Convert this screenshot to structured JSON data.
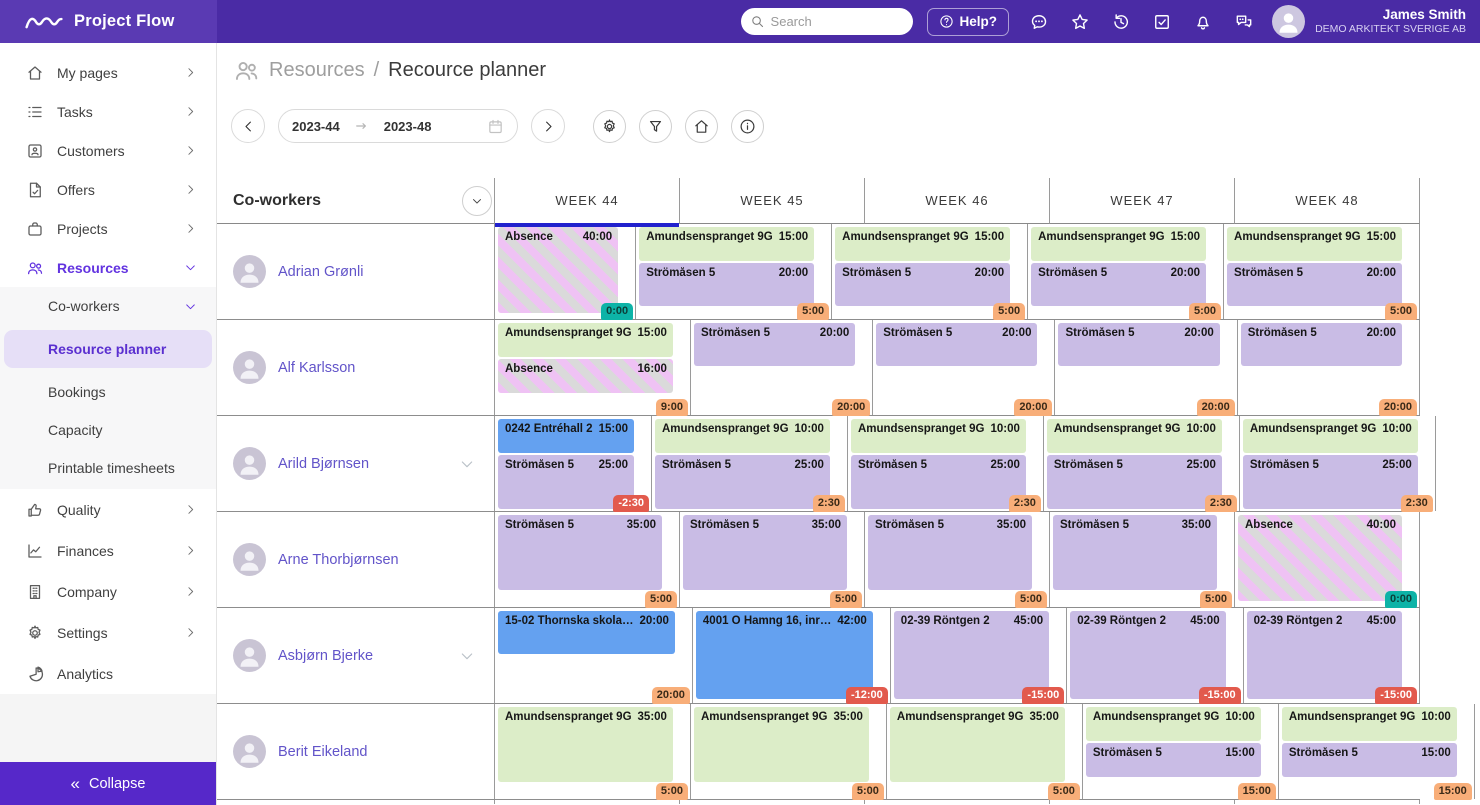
{
  "topbar": {
    "brand": "Project Flow",
    "search_placeholder": "Search",
    "help_label": "Help?",
    "icons": [
      {
        "name": "feedback-icon",
        "glyph": "feedback"
      },
      {
        "name": "favorites-star-icon",
        "glyph": "star"
      },
      {
        "name": "history-icon",
        "glyph": "history"
      },
      {
        "name": "tasks-check-icon",
        "glyph": "check-square"
      },
      {
        "name": "notifications-bell-icon",
        "glyph": "bell"
      },
      {
        "name": "messages-icon",
        "glyph": "messages"
      }
    ],
    "user": {
      "name": "James Smith",
      "company": "DEMO ARKITEKT SVERIGE AB"
    }
  },
  "sidebar": {
    "items": [
      {
        "label": "My pages",
        "icon": "home",
        "chevron": "right"
      },
      {
        "label": "Tasks",
        "icon": "tasks",
        "chevron": "right"
      },
      {
        "label": "Customers",
        "icon": "customers",
        "chevron": "right"
      },
      {
        "label": "Offers",
        "icon": "offers",
        "chevron": "right"
      },
      {
        "label": "Projects",
        "icon": "projects",
        "chevron": "right"
      },
      {
        "label": "Resources",
        "icon": "resources",
        "chevron": "down",
        "active": true
      },
      {
        "label": "Co-workers",
        "sub": 1,
        "chevron": "down"
      },
      {
        "label": "Resource planner",
        "sub": 2,
        "selected": true
      },
      {
        "label": "Bookings",
        "sub": 2
      },
      {
        "label": "Capacity",
        "sub": 2
      },
      {
        "label": "Printable timesheets",
        "sub": 2
      },
      {
        "label": "Quality",
        "icon": "quality",
        "chevron": "right"
      },
      {
        "label": "Finances",
        "icon": "finances",
        "chevron": "right"
      },
      {
        "label": "Company",
        "icon": "company",
        "chevron": "right"
      },
      {
        "label": "Settings",
        "icon": "settings",
        "chevron": "right"
      },
      {
        "label": "Analytics",
        "icon": "analytics"
      }
    ],
    "collapse_label": "Collapse",
    "collapse_glyph": "«"
  },
  "breadcrumb": {
    "section": "Resources",
    "separator": "/",
    "page": "Recource planner"
  },
  "toolbar": {
    "week_from": "2023-44",
    "week_to": "2023-48",
    "action_icons": [
      "settings-icon",
      "filter-icon",
      "home-icon",
      "info-icon"
    ]
  },
  "planner": {
    "coworkers_header": "Co-workers",
    "weeks": [
      "WEEK 44",
      "WEEK 45",
      "WEEK 46",
      "WEEK 47",
      "WEEK 48"
    ],
    "current_week_index": 0,
    "rows": [
      {
        "name": "Adrian Grønli",
        "expandable": false,
        "cells": [
          {
            "bookings": [
              {
                "label": "Absence",
                "hours": "40:00",
                "type": "absence"
              }
            ],
            "total": "0:00",
            "badge": "teal"
          },
          {
            "bookings": [
              {
                "label": "Amundsenspranget 9G",
                "hours": "15:00",
                "type": "green"
              },
              {
                "label": "Strömåsen 5",
                "hours": "20:00",
                "type": "purple"
              }
            ],
            "total": "5:00",
            "badge": "orange"
          },
          {
            "bookings": [
              {
                "label": "Amundsenspranget 9G",
                "hours": "15:00",
                "type": "green"
              },
              {
                "label": "Strömåsen 5",
                "hours": "20:00",
                "type": "purple"
              }
            ],
            "total": "5:00",
            "badge": "orange"
          },
          {
            "bookings": [
              {
                "label": "Amundsenspranget 9G",
                "hours": "15:00",
                "type": "green"
              },
              {
                "label": "Strömåsen 5",
                "hours": "20:00",
                "type": "purple"
              }
            ],
            "total": "5:00",
            "badge": "orange"
          },
          {
            "bookings": [
              {
                "label": "Amundsenspranget 9G",
                "hours": "15:00",
                "type": "green"
              },
              {
                "label": "Strömåsen 5",
                "hours": "20:00",
                "type": "purple"
              }
            ],
            "total": "5:00",
            "badge": "orange"
          }
        ]
      },
      {
        "name": "Alf Karlsson",
        "expandable": false,
        "cells": [
          {
            "bookings": [
              {
                "label": "Amundsenspranget 9G",
                "hours": "15:00",
                "type": "green"
              },
              {
                "label": "Absence",
                "hours": "16:00",
                "type": "absence"
              }
            ],
            "total": "9:00",
            "badge": "orange"
          },
          {
            "bookings": [
              {
                "label": "Strömåsen 5",
                "hours": "20:00",
                "type": "purple"
              }
            ],
            "total": "20:00",
            "badge": "orange"
          },
          {
            "bookings": [
              {
                "label": "Strömåsen 5",
                "hours": "20:00",
                "type": "purple"
              }
            ],
            "total": "20:00",
            "badge": "orange"
          },
          {
            "bookings": [
              {
                "label": "Strömåsen 5",
                "hours": "20:00",
                "type": "purple"
              }
            ],
            "total": "20:00",
            "badge": "orange"
          },
          {
            "bookings": [
              {
                "label": "Strömåsen 5",
                "hours": "20:00",
                "type": "purple"
              }
            ],
            "total": "20:00",
            "badge": "orange"
          }
        ]
      },
      {
        "name": "Arild Bjørnsen",
        "expandable": true,
        "cells": [
          {
            "bookings": [
              {
                "label": "0242 Entréhall 2",
                "hours": "15:00",
                "type": "blue"
              },
              {
                "label": "Strömåsen 5",
                "hours": "25:00",
                "type": "purple"
              }
            ],
            "total": "-2:30",
            "badge": "red"
          },
          {
            "bookings": [
              {
                "label": "Amundsenspranget 9G",
                "hours": "10:00",
                "type": "green"
              },
              {
                "label": "Strömåsen 5",
                "hours": "25:00",
                "type": "purple"
              }
            ],
            "total": "2:30",
            "badge": "orange"
          },
          {
            "bookings": [
              {
                "label": "Amundsenspranget 9G",
                "hours": "10:00",
                "type": "green"
              },
              {
                "label": "Strömåsen 5",
                "hours": "25:00",
                "type": "purple"
              }
            ],
            "total": "2:30",
            "badge": "orange"
          },
          {
            "bookings": [
              {
                "label": "Amundsenspranget 9G",
                "hours": "10:00",
                "type": "green"
              },
              {
                "label": "Strömåsen 5",
                "hours": "25:00",
                "type": "purple"
              }
            ],
            "total": "2:30",
            "badge": "orange"
          },
          {
            "bookings": [
              {
                "label": "Amundsenspranget 9G",
                "hours": "10:00",
                "type": "green"
              },
              {
                "label": "Strömåsen 5",
                "hours": "25:00",
                "type": "purple"
              }
            ],
            "total": "2:30",
            "badge": "orange"
          }
        ]
      },
      {
        "name": "Arne Thorbjørnsen",
        "expandable": false,
        "cells": [
          {
            "bookings": [
              {
                "label": "Strömåsen 5",
                "hours": "35:00",
                "type": "purple"
              }
            ],
            "total": "5:00",
            "badge": "orange"
          },
          {
            "bookings": [
              {
                "label": "Strömåsen 5",
                "hours": "35:00",
                "type": "purple"
              }
            ],
            "total": "5:00",
            "badge": "orange"
          },
          {
            "bookings": [
              {
                "label": "Strömåsen 5",
                "hours": "35:00",
                "type": "purple"
              }
            ],
            "total": "5:00",
            "badge": "orange"
          },
          {
            "bookings": [
              {
                "label": "Strömåsen 5",
                "hours": "35:00",
                "type": "purple"
              }
            ],
            "total": "5:00",
            "badge": "orange"
          },
          {
            "bookings": [
              {
                "label": "Absence",
                "hours": "40:00",
                "type": "absence"
              }
            ],
            "total": "0:00",
            "badge": "teal"
          }
        ]
      },
      {
        "name": "Asbjørn Bjerke",
        "expandable": true,
        "cells": [
          {
            "bookings": [
              {
                "label": "15-02 Thornska skola…",
                "hours": "20:00",
                "type": "blue"
              }
            ],
            "total": "20:00",
            "badge": "orange"
          },
          {
            "bookings": [
              {
                "label": "4001 Ö Hamng 16, inr…",
                "hours": "42:00",
                "type": "blue"
              }
            ],
            "total": "-12:00",
            "badge": "red"
          },
          {
            "bookings": [
              {
                "label": "02-39 Röntgen 2",
                "hours": "45:00",
                "type": "purple"
              }
            ],
            "total": "-15:00",
            "badge": "red"
          },
          {
            "bookings": [
              {
                "label": "02-39 Röntgen 2",
                "hours": "45:00",
                "type": "purple"
              }
            ],
            "total": "-15:00",
            "badge": "red"
          },
          {
            "bookings": [
              {
                "label": "02-39 Röntgen 2",
                "hours": "45:00",
                "type": "purple"
              }
            ],
            "total": "-15:00",
            "badge": "red"
          }
        ]
      },
      {
        "name": "Berit Eikeland",
        "expandable": false,
        "cells": [
          {
            "bookings": [
              {
                "label": "Amundsenspranget 9G",
                "hours": "35:00",
                "type": "green"
              }
            ],
            "total": "5:00",
            "badge": "orange"
          },
          {
            "bookings": [
              {
                "label": "Amundsenspranget 9G",
                "hours": "35:00",
                "type": "green"
              }
            ],
            "total": "5:00",
            "badge": "orange"
          },
          {
            "bookings": [
              {
                "label": "Amundsenspranget 9G",
                "hours": "35:00",
                "type": "green"
              }
            ],
            "total": "5:00",
            "badge": "orange"
          },
          {
            "bookings": [
              {
                "label": "Amundsenspranget 9G",
                "hours": "10:00",
                "type": "green"
              },
              {
                "label": "Strömåsen 5",
                "hours": "15:00",
                "type": "purple"
              }
            ],
            "total": "15:00",
            "badge": "orange"
          },
          {
            "bookings": [
              {
                "label": "Amundsenspranget 9G",
                "hours": "10:00",
                "type": "green"
              },
              {
                "label": "Strömåsen 5",
                "hours": "15:00",
                "type": "purple"
              }
            ],
            "total": "15:00",
            "badge": "orange"
          }
        ]
      }
    ]
  },
  "colors": {
    "topbar": "#4a2ba5",
    "brand_chip": "#5a3ab3",
    "accent": "#6233e0",
    "selected_text": "#5a2fd0",
    "selected_pill": "#e6dff7",
    "collapse": "#5628c9",
    "name_link": "#6254c9",
    "current_week_bar": "#2121cd",
    "booking_green": "#dcedc8",
    "booking_purple": "#c9bce5",
    "booking_blue": "#64a1f0",
    "absence_pink": "#efc2f4",
    "absence_gray": "#dadada",
    "badge_orange": "#f8ae79",
    "badge_red": "#e25a4d",
    "badge_teal": "#0db3a7"
  }
}
